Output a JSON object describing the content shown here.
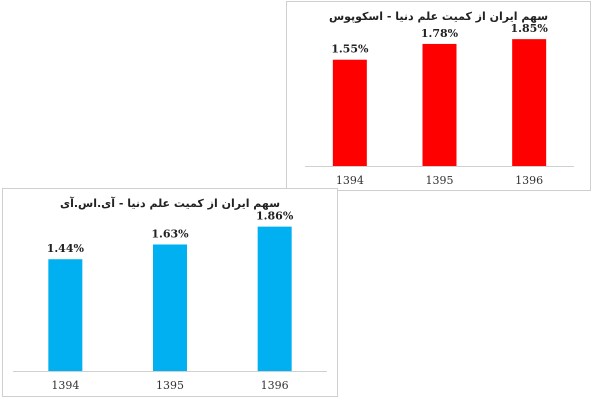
{
  "chart_data": [
    {
      "type": "bar",
      "title": "سهم ایران از کمیت علم دنیا - اسکوپوس",
      "categories": [
        "1394",
        "1395",
        "1396"
      ],
      "values": [
        1.55,
        1.78,
        1.85
      ],
      "labels": [
        "1.55%",
        "1.78%",
        "1.85%"
      ],
      "ylim": [
        0,
        2.1
      ],
      "color": "#ff0000",
      "grid": false
    },
    {
      "type": "bar",
      "title": "سهم ایران از کمیت علم دنیا - آی.اس.آی",
      "categories": [
        "1394",
        "1395",
        "1396"
      ],
      "values": [
        1.44,
        1.63,
        1.86
      ],
      "labels": [
        "1.44%",
        "1.63%",
        "1.86%"
      ],
      "ylim": [
        0,
        2.1
      ],
      "color": "#00b0f0",
      "grid": false
    }
  ]
}
